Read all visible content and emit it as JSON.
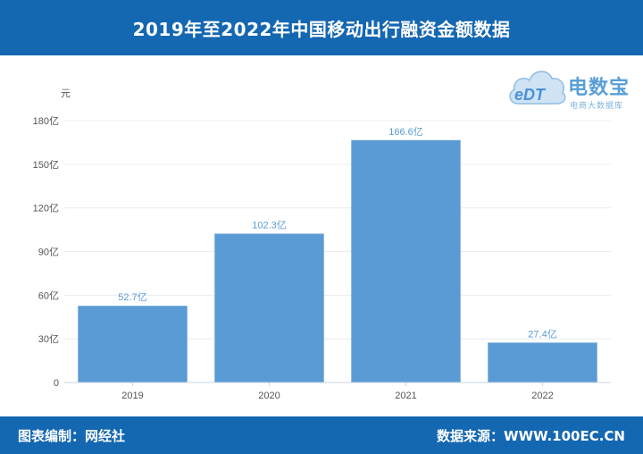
{
  "header": {
    "title": "2019年至2022年中国移动出行融资金额数据"
  },
  "logo": {
    "brand": "电数宝",
    "tagline": "电商大数据库",
    "mark": "eDT"
  },
  "footer": {
    "left": "图表编制：网经社",
    "right": "数据来源：WWW.100EC.CN"
  },
  "colors": {
    "header_bg": "#1467b1",
    "bar": "#5b9bd5",
    "value_label": "#5b9bd5",
    "axis_text": "#555555"
  },
  "chart_data": {
    "type": "bar",
    "title": "2019年至2022年中国移动出行融资金额数据",
    "ylabel": "元",
    "xlabel": "",
    "categories": [
      "2019",
      "2020",
      "2021",
      "2022"
    ],
    "values": [
      52.7,
      102.3,
      166.6,
      27.4
    ],
    "value_labels": [
      "52.7亿",
      "102.3亿",
      "166.6亿",
      "27.4亿"
    ],
    "ylim": [
      0,
      180
    ],
    "yticks": [
      0,
      30,
      60,
      90,
      120,
      150,
      180
    ],
    "ytick_labels": [
      "0",
      "30亿",
      "60亿",
      "90亿",
      "120亿",
      "150亿",
      "180亿"
    ],
    "grid": true,
    "legend": "none"
  }
}
